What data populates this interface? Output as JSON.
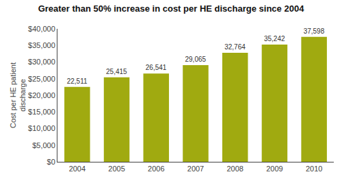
{
  "chart_data": {
    "type": "bar",
    "title": "Greater than 50% increase in cost per HE discharge since 2004",
    "ylabel": "Cost per HE patient\ndischarge",
    "categories": [
      "2004",
      "2005",
      "2006",
      "2007",
      "2008",
      "2009",
      "2010"
    ],
    "values": [
      22511,
      25415,
      26541,
      29065,
      32764,
      35242,
      37598
    ],
    "value_labels": [
      "22,511",
      "25,415",
      "26,541",
      "29,065",
      "32,764",
      "35,242",
      "37,598"
    ],
    "data_labels": true,
    "color": "#a0aa10",
    "ylim": [
      0,
      40000
    ],
    "yticks": [
      {
        "value": 0,
        "label": "$0"
      },
      {
        "value": 5000,
        "label": "$5,000"
      },
      {
        "value": 10000,
        "label": "$10,000"
      },
      {
        "value": 15000,
        "label": "$15,000"
      },
      {
        "value": 20000,
        "label": "$20,000"
      },
      {
        "value": 25000,
        "label": "$25,000"
      },
      {
        "value": 30000,
        "label": "$30,000"
      },
      {
        "value": 35000,
        "label": "$35,000"
      },
      {
        "value": 40000,
        "label": "$40,000"
      }
    ],
    "grid": false
  }
}
